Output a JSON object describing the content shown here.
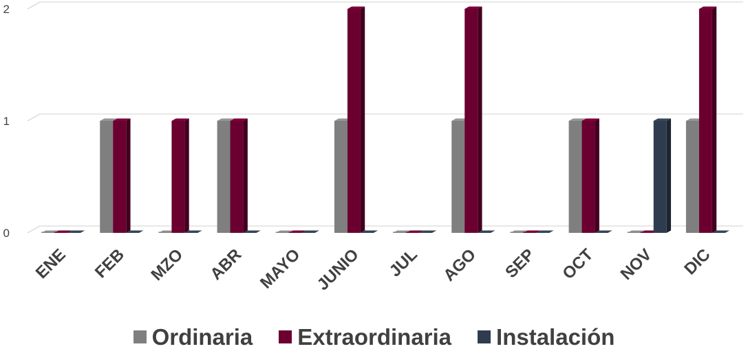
{
  "chart_data": {
    "type": "bar",
    "categories": [
      "ENE",
      "FEB",
      "MZO",
      "ABR",
      "MAYO",
      "JUNIO",
      "JUL",
      "AGO",
      "SEP",
      "OCT",
      "NOV",
      "DIC"
    ],
    "series": [
      {
        "name": "Ordinaria",
        "color": "#7f7f7f",
        "values": [
          0,
          1,
          0,
          1,
          0,
          1,
          0,
          1,
          0,
          1,
          0,
          1
        ]
      },
      {
        "name": "Extraordinaria",
        "color": "#6b0030",
        "values": [
          0,
          1,
          1,
          1,
          0,
          2,
          0,
          2,
          0,
          1,
          0,
          2
        ]
      },
      {
        "name": "Instalación",
        "color": "#2f3c4f",
        "values": [
          0,
          0,
          0,
          0,
          0,
          0,
          0,
          0,
          0,
          0,
          1,
          0
        ]
      }
    ],
    "yticks": [
      0,
      1,
      2
    ],
    "ylim": [
      0,
      2
    ],
    "grid": true,
    "legend_position": "bottom",
    "style": "3d-clustered-column"
  }
}
